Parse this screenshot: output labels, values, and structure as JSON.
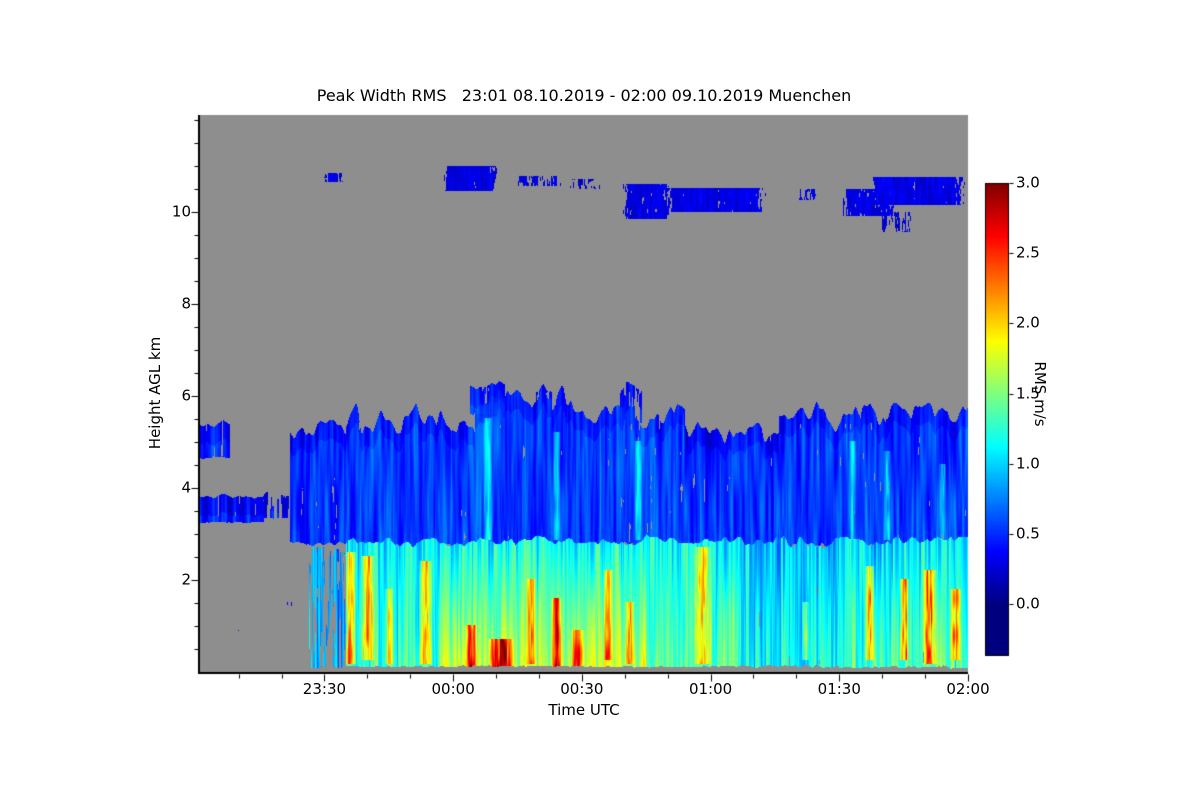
{
  "chart_data": {
    "type": "heatmap",
    "title": "Peak Width RMS   23:01 08.10.2019 - 02:00 09.10.2019 Muenchen",
    "site": "Muenchen",
    "time_range": "23:01 08.10.2019 - 02:00 09.10.2019",
    "xlabel": "Time UTC",
    "ylabel": "Height AGL km",
    "x_axis": {
      "start_label": "23:01",
      "end_label": "02:00",
      "total_minutes": 179,
      "tick_minutes": [
        29,
        59,
        89,
        119,
        149,
        179
      ],
      "tick_labels": [
        "23:30",
        "00:00",
        "00:30",
        "01:00",
        "01:30",
        "02:00"
      ],
      "minor_step_minutes": 10
    },
    "y_axis": {
      "range": [
        0,
        12.1
      ],
      "tick_values": [
        2,
        4,
        6,
        8,
        10
      ],
      "tick_labels": [
        "2",
        "4",
        "6",
        "8",
        "10"
      ],
      "minor_step": 0.5,
      "unit": "km"
    },
    "colorbar": {
      "label": "RMS m/s",
      "vmin": 0,
      "vmax": 3,
      "tick_values": [
        3,
        2.5,
        2,
        1.5,
        1,
        0.5,
        0
      ],
      "tick_labels": [
        "3.0",
        "2.5",
        "2.0",
        "1.5",
        "1.0",
        "0.5",
        "0.0"
      ],
      "colormap": "jet"
    },
    "no_data_color": "#8e8e8e",
    "regions": [
      {
        "style": "patch",
        "t": [
          28.5,
          34
        ],
        "h": [
          10.65,
          10.85
        ],
        "v": 0.28,
        "vr": 0.15,
        "cov": 0.65
      },
      {
        "style": "patch",
        "t": [
          56,
          70
        ],
        "h": [
          10.45,
          11.0
        ],
        "v": 0.28,
        "vr": 0.15,
        "cov": 0.85
      },
      {
        "style": "patch",
        "t": [
          73,
          85
        ],
        "h": [
          10.55,
          10.78
        ],
        "v": 0.28,
        "vr": 0.15,
        "cov": 0.55
      },
      {
        "style": "patch",
        "t": [
          86,
          94
        ],
        "h": [
          10.5,
          10.72
        ],
        "v": 0.28,
        "vr": 0.15,
        "cov": 0.5
      },
      {
        "style": "patch",
        "t": [
          98,
          110
        ],
        "h": [
          9.85,
          10.6
        ],
        "v": 0.3,
        "vr": 0.15,
        "cov": 0.8
      },
      {
        "style": "patch",
        "t": [
          107,
          133
        ],
        "h": [
          10.0,
          10.52
        ],
        "v": 0.3,
        "vr": 0.15,
        "cov": 0.85
      },
      {
        "style": "patch",
        "t": [
          139,
          144
        ],
        "h": [
          10.25,
          10.5
        ],
        "v": 0.28,
        "vr": 0.15,
        "cov": 0.5
      },
      {
        "style": "patch",
        "t": [
          149,
          163
        ],
        "h": [
          9.9,
          10.5
        ],
        "v": 0.3,
        "vr": 0.15,
        "cov": 0.75
      },
      {
        "style": "patch",
        "t": [
          155,
          179
        ],
        "h": [
          10.15,
          10.75
        ],
        "v": 0.3,
        "vr": 0.15,
        "cov": 0.85
      },
      {
        "style": "patch",
        "t": [
          158,
          167
        ],
        "h": [
          9.55,
          10.0
        ],
        "v": 0.28,
        "vr": 0.15,
        "cov": 0.45
      },
      {
        "style": "layer",
        "t": [
          0,
          7
        ],
        "h": [
          4.65,
          5.35
        ],
        "v": 0.5,
        "vr": 0.28,
        "cov": 0.8,
        "edge": 0.15
      },
      {
        "style": "layer",
        "t": [
          0,
          15
        ],
        "h": [
          3.25,
          3.8
        ],
        "v": 0.5,
        "vr": 0.28,
        "cov": 0.8,
        "edge": 0.1
      },
      {
        "style": "layer",
        "t": [
          15,
          25
        ],
        "h": [
          3.35,
          3.85
        ],
        "v": 0.45,
        "vr": 0.28,
        "cov": 0.55,
        "edge": 0.1
      },
      {
        "style": "layer",
        "t": [
          21,
          34
        ],
        "h": [
          2.78,
          5.25
        ],
        "v": 0.5,
        "vr": 0.28,
        "cov": 0.8,
        "edge": 0.3
      },
      {
        "style": "layer",
        "t": [
          34,
          64
        ],
        "h": [
          2.75,
          5.45
        ],
        "v": 0.55,
        "vr": 0.28,
        "cov": 0.9,
        "edge": 0.5
      },
      {
        "style": "layer",
        "t": [
          64,
          82
        ],
        "h": [
          2.75,
          5.95
        ],
        "v": 0.55,
        "vr": 0.28,
        "cov": 0.9,
        "edge": 0.45
      },
      {
        "style": "layer",
        "t": [
          82,
          100
        ],
        "h": [
          2.75,
          5.7
        ],
        "v": 0.55,
        "vr": 0.28,
        "cov": 0.88,
        "edge": 0.5
      },
      {
        "style": "layer",
        "t": [
          100,
          113
        ],
        "h": [
          2.75,
          5.45
        ],
        "v": 0.55,
        "vr": 0.28,
        "cov": 0.82,
        "edge": 0.5
      },
      {
        "style": "layer",
        "t": [
          113,
          135
        ],
        "h": [
          2.75,
          5.15
        ],
        "v": 0.5,
        "vr": 0.28,
        "cov": 0.85,
        "edge": 0.4
      },
      {
        "style": "layer",
        "t": [
          135,
          160
        ],
        "h": [
          2.75,
          5.5
        ],
        "v": 0.55,
        "vr": 0.28,
        "cov": 0.85,
        "edge": 0.5
      },
      {
        "style": "layer",
        "t": [
          160,
          179
        ],
        "h": [
          2.75,
          5.6
        ],
        "v": 0.55,
        "vr": 0.28,
        "cov": 0.85,
        "edge": 0.45
      },
      {
        "style": "layer",
        "t": [
          63,
          71
        ],
        "h": [
          5.6,
          6.25
        ],
        "v": 0.5,
        "vr": 0.25,
        "cov": 0.7,
        "edge": 0.2
      },
      {
        "style": "layer",
        "t": [
          78,
          83
        ],
        "h": [
          5.5,
          6.1
        ],
        "v": 0.45,
        "vr": 0.25,
        "cov": 0.6,
        "edge": 0.2
      },
      {
        "style": "layer",
        "t": [
          98,
          103
        ],
        "h": [
          5.4,
          6.15
        ],
        "v": 0.45,
        "vr": 0.25,
        "cov": 0.6,
        "edge": 0.2
      },
      {
        "style": "bl",
        "t": [
          25.5,
          34
        ],
        "h": [
          0.1,
          2.6
        ],
        "v": 0.8,
        "vr": 0.45,
        "cov": 0.5,
        "edge": 0.2,
        "gb": 0.1
      },
      {
        "style": "bl",
        "t": [
          34,
          56
        ],
        "h": [
          0.12,
          2.82
        ],
        "v": 1.05,
        "vr": 0.45,
        "cov": 0.96,
        "edge": 0.15,
        "gb": 0.25
      },
      {
        "style": "bl",
        "t": [
          56,
          104
        ],
        "h": [
          0.12,
          2.82
        ],
        "v": 1.15,
        "vr": 0.45,
        "cov": 0.97,
        "edge": 0.15,
        "gb": 0.55
      },
      {
        "style": "bl",
        "t": [
          104,
          126
        ],
        "h": [
          0.12,
          2.85
        ],
        "v": 1.1,
        "vr": 0.45,
        "cov": 0.95,
        "edge": 0.15,
        "gb": 0.3
      },
      {
        "style": "bl",
        "t": [
          126,
          149
        ],
        "h": [
          0.12,
          2.8
        ],
        "v": 0.95,
        "vr": 0.45,
        "cov": 0.88,
        "edge": 0.2,
        "gb": 0.2
      },
      {
        "style": "bl",
        "t": [
          149,
          179
        ],
        "h": [
          0.1,
          2.78
        ],
        "v": 1.05,
        "vr": 0.45,
        "cov": 0.93,
        "edge": 0.2,
        "gb": 0.3
      },
      {
        "style": "patch",
        "t": [
          1,
          26
        ],
        "h": [
          0.05,
          1.6
        ],
        "v": 0.32,
        "vr": 0.15,
        "cov": 0.1
      }
    ],
    "streaks": [
      {
        "t": 35,
        "w": 2.5,
        "dv": 0.85,
        "h": [
          0.2,
          2.6
        ]
      },
      {
        "t": 39,
        "w": 3,
        "dv": 0.95,
        "h": [
          0.3,
          2.5
        ]
      },
      {
        "t": 44,
        "w": 2,
        "dv": 0.6,
        "h": [
          0.2,
          1.8
        ]
      },
      {
        "t": 52.5,
        "w": 3,
        "dv": 0.75,
        "h": [
          0.2,
          2.4
        ]
      },
      {
        "t": 63,
        "w": 3,
        "dv": 1.0,
        "h": [
          0.1,
          1.0
        ]
      },
      {
        "t": 70,
        "w": 6,
        "dv": 1.15,
        "h": [
          0.1,
          0.7
        ]
      },
      {
        "t": 77,
        "w": 2,
        "dv": 0.8,
        "h": [
          0.2,
          2.0
        ]
      },
      {
        "t": 83,
        "w": 2,
        "dv": 1.15,
        "h": [
          0.1,
          1.6
        ]
      },
      {
        "t": 88,
        "w": 3,
        "dv": 0.9,
        "h": [
          0.1,
          0.9
        ]
      },
      {
        "t": 95,
        "w": 2,
        "dv": 0.7,
        "h": [
          0.3,
          2.2
        ]
      },
      {
        "t": 100,
        "w": 2,
        "dv": 0.8,
        "h": [
          0.2,
          1.5
        ]
      },
      {
        "t": 117,
        "w": 4,
        "dv": 0.75,
        "h": [
          0.2,
          2.7
        ]
      },
      {
        "t": 141,
        "w": 1.5,
        "dv": 0.6,
        "h": [
          0.3,
          1.5
        ]
      },
      {
        "t": 156,
        "w": 2,
        "dv": 0.95,
        "h": [
          0.3,
          2.3
        ]
      },
      {
        "t": 164,
        "w": 2,
        "dv": 1.0,
        "h": [
          0.3,
          2.0
        ]
      },
      {
        "t": 170,
        "w": 3,
        "dv": 1.1,
        "h": [
          0.2,
          2.2
        ]
      },
      {
        "t": 176,
        "w": 2.5,
        "dv": 0.9,
        "h": [
          0.3,
          1.8
        ]
      },
      {
        "t": 67,
        "w": 2,
        "dv": 0.5,
        "h": [
          2.9,
          5.5
        ]
      },
      {
        "t": 83,
        "w": 1.5,
        "dv": 0.5,
        "h": [
          2.9,
          5.2
        ]
      },
      {
        "t": 102,
        "w": 1.5,
        "dv": 0.45,
        "h": [
          2.9,
          5.0
        ]
      },
      {
        "t": 152,
        "w": 1.5,
        "dv": 0.4,
        "h": [
          2.9,
          5.0
        ]
      },
      {
        "t": 160,
        "w": 1.5,
        "dv": 0.45,
        "h": [
          2.9,
          4.8
        ]
      },
      {
        "t": 173,
        "w": 1.5,
        "dv": 0.45,
        "h": [
          2.9,
          4.5
        ]
      }
    ]
  }
}
